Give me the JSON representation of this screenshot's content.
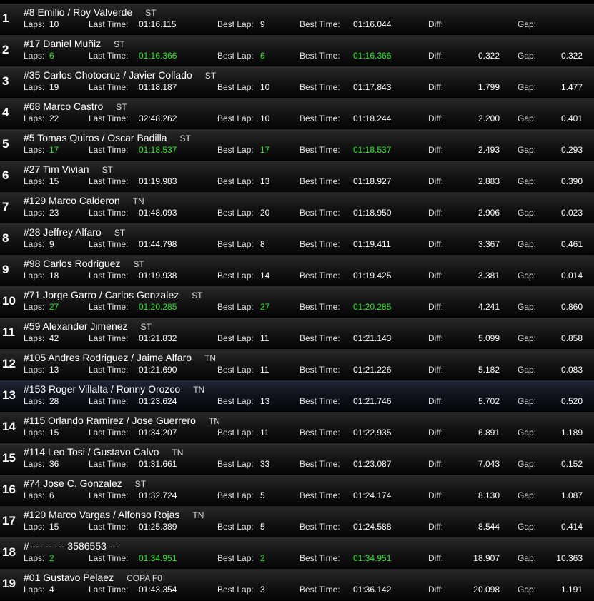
{
  "labels": {
    "laps": "Laps:",
    "last_time": "Last Time:",
    "best_lap": "Best Lap:",
    "best_time": "Best Time:",
    "diff": "Diff:",
    "gap": "Gap:"
  },
  "colors": {
    "highlight_green": "#2ee82e",
    "row_highlight": "#222638"
  },
  "highlighted_position": 13,
  "rows": [
    {
      "pos": "1",
      "name": "#8 Emilio / Roy Valverde",
      "cls": "ST",
      "laps": "10",
      "last": "01:16.115",
      "best_lap": "9",
      "best_time": "01:16.044",
      "diff": "",
      "gap": "",
      "green": false
    },
    {
      "pos": "2",
      "name": "#17 Daniel Muñiz",
      "cls": "ST",
      "laps": "6",
      "last": "01:16.366",
      "best_lap": "6",
      "best_time": "01:16.366",
      "diff": "0.322",
      "gap": "0.322",
      "green": true
    },
    {
      "pos": "3",
      "name": "#35 Carlos Chotocruz / Javier Collado",
      "cls": "ST",
      "laps": "19",
      "last": "01:18.187",
      "best_lap": "10",
      "best_time": "01:17.843",
      "diff": "1.799",
      "gap": "1.477",
      "green": false
    },
    {
      "pos": "4",
      "name": "#68 Marco Castro",
      "cls": "ST",
      "laps": "22",
      "last": "32:48.262",
      "best_lap": "10",
      "best_time": "01:18.244",
      "diff": "2.200",
      "gap": "0.401",
      "green": false
    },
    {
      "pos": "5",
      "name": "#5 Tomas Quiros / Oscar Badilla",
      "cls": "ST",
      "laps": "17",
      "last": "01:18.537",
      "best_lap": "17",
      "best_time": "01:18.537",
      "diff": "2.493",
      "gap": "0.293",
      "green": true
    },
    {
      "pos": "6",
      "name": "#27 Tim Vivian",
      "cls": "ST",
      "laps": "15",
      "last": "01:19.983",
      "best_lap": "13",
      "best_time": "01:18.927",
      "diff": "2.883",
      "gap": "0.390",
      "green": false
    },
    {
      "pos": "7",
      "name": "#129 Marco Calderon",
      "cls": "TN",
      "laps": "23",
      "last": "01:48.093",
      "best_lap": "20",
      "best_time": "01:18.950",
      "diff": "2.906",
      "gap": "0.023",
      "green": false
    },
    {
      "pos": "8",
      "name": "#28 Jeffrey Alfaro",
      "cls": "ST",
      "laps": "9",
      "last": "01:44.798",
      "best_lap": "8",
      "best_time": "01:19.411",
      "diff": "3.367",
      "gap": "0.461",
      "green": false
    },
    {
      "pos": "9",
      "name": "#98 Carlos Rodriguez",
      "cls": "ST",
      "laps": "18",
      "last": "01:19.938",
      "best_lap": "14",
      "best_time": "01:19.425",
      "diff": "3.381",
      "gap": "0.014",
      "green": false
    },
    {
      "pos": "10",
      "name": "#71 Jorge Garro / Carlos Gonzalez",
      "cls": "ST",
      "laps": "27",
      "last": "01:20.285",
      "best_lap": "27",
      "best_time": "01:20.285",
      "diff": "4.241",
      "gap": "0.860",
      "green": true
    },
    {
      "pos": "11",
      "name": "#59 Alexander Jimenez",
      "cls": "ST",
      "laps": "42",
      "last": "01:21.832",
      "best_lap": "11",
      "best_time": "01:21.143",
      "diff": "5.099",
      "gap": "0.858",
      "green": false
    },
    {
      "pos": "12",
      "name": "#105 Andres Rodriguez / Jaime Alfaro",
      "cls": "TN",
      "laps": "13",
      "last": "01:21.690",
      "best_lap": "11",
      "best_time": "01:21.226",
      "diff": "5.182",
      "gap": "0.083",
      "green": false
    },
    {
      "pos": "13",
      "name": "#153 Roger Villalta / Ronny Orozco",
      "cls": "TN",
      "laps": "28",
      "last": "01:23.624",
      "best_lap": "13",
      "best_time": "01:21.746",
      "diff": "5.702",
      "gap": "0.520",
      "green": false
    },
    {
      "pos": "14",
      "name": "#115 Orlando Ramirez / Jose Guerrero",
      "cls": "TN",
      "laps": "15",
      "last": "01:34.207",
      "best_lap": "11",
      "best_time": "01:22.935",
      "diff": "6.891",
      "gap": "1.189",
      "green": false
    },
    {
      "pos": "15",
      "name": "#114 Leo Tosi / Gustavo Calvo",
      "cls": "TN",
      "laps": "36",
      "last": "01:31.661",
      "best_lap": "33",
      "best_time": "01:23.087",
      "diff": "7.043",
      "gap": "0.152",
      "green": false
    },
    {
      "pos": "16",
      "name": "#74 Jose C. Gonzalez",
      "cls": "ST",
      "laps": "6",
      "last": "01:32.724",
      "best_lap": "5",
      "best_time": "01:24.174",
      "diff": "8.130",
      "gap": "1.087",
      "green": false
    },
    {
      "pos": "17",
      "name": "#120 Marco Vargas / Alfonso Rojas",
      "cls": "TN",
      "laps": "15",
      "last": "01:25.389",
      "best_lap": "5",
      "best_time": "01:24.588",
      "diff": "8.544",
      "gap": "0.414",
      "green": false
    },
    {
      "pos": "18",
      "name": "#---- -- --- 3586553 ---",
      "cls": "",
      "laps": "2",
      "last": "01:34.951",
      "best_lap": "2",
      "best_time": "01:34.951",
      "diff": "18.907",
      "gap": "10.363",
      "green": true
    },
    {
      "pos": "19",
      "name": "#01 Gustavo Pelaez",
      "cls": "COPA F0",
      "laps": "4",
      "last": "01:43.354",
      "best_lap": "3",
      "best_time": "01:36.142",
      "diff": "20.098",
      "gap": "1.191",
      "green": false
    }
  ]
}
